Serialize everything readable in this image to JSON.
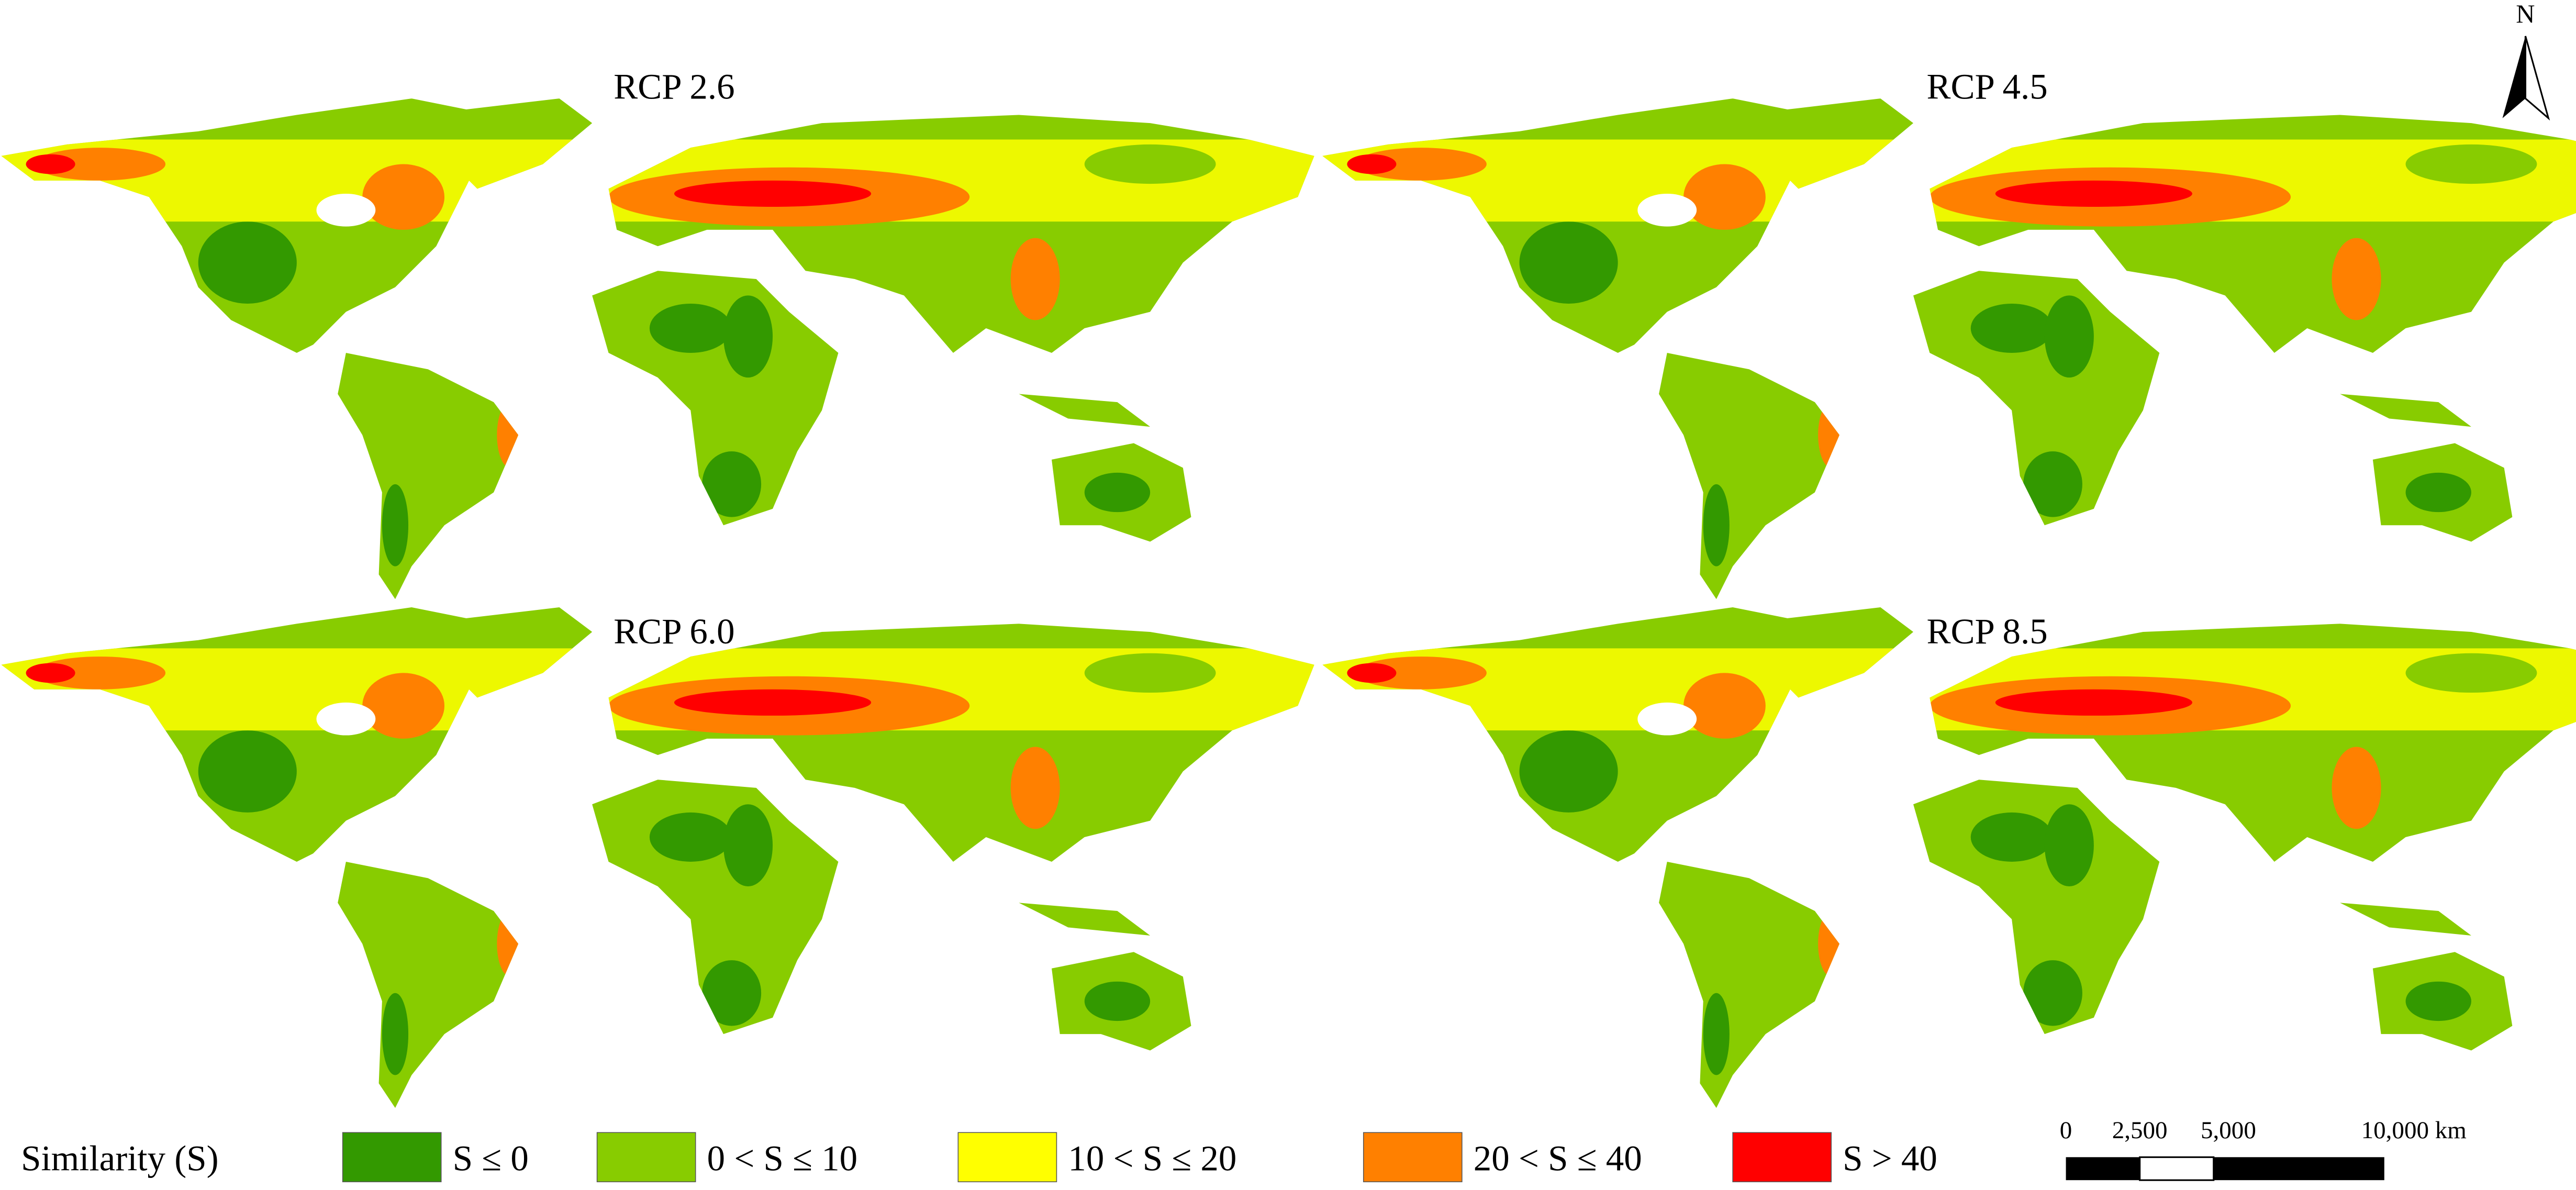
{
  "panels": [
    {
      "title": "RCP 2.6"
    },
    {
      "title": "RCP 4.5"
    },
    {
      "title": "RCP 6.0"
    },
    {
      "title": "RCP 8.5"
    }
  ],
  "north": "N",
  "legend": {
    "title": "Similarity (S)",
    "items": [
      {
        "label": "S ≤ 0",
        "color": "#339900"
      },
      {
        "label": "0 < S ≤ 10",
        "color": "#88cc00"
      },
      {
        "label": "10 < S ≤ 20",
        "color": "#ffff00"
      },
      {
        "label": "20 < S ≤ 40",
        "color": "#ff8000"
      },
      {
        "label": "S > 40",
        "color": "#ff0000"
      }
    ]
  },
  "scale_bar": {
    "labels": [
      "0",
      "2,500",
      "5,000",
      "10,000 km"
    ]
  }
}
